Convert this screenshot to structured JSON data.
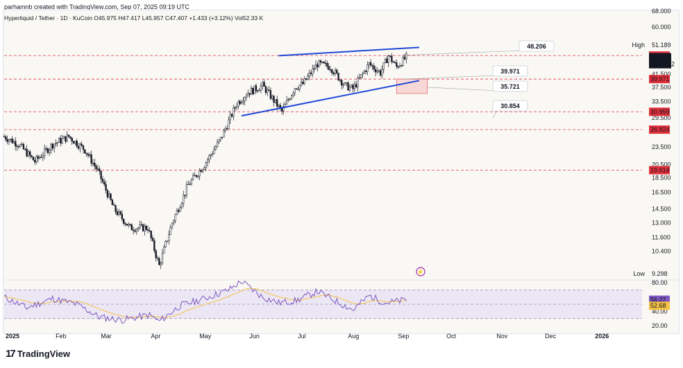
{
  "header": {
    "creator_line": "parhamnb created with TradingView.com, Sep 07, 2025 09:19 UTC",
    "symbol_line": "Hyperliquid / Tether · 1D · KuCoin  O45.975  H47.417  L45.957  C47.407  +1.433 (+3.12%)  Vol52.33 K"
  },
  "branding": {
    "name": "TradingView"
  },
  "chart_data": {
    "type": "candlestick",
    "title": "Hyperliquid / Tether · 1D · KuCoin",
    "y_scale": "log",
    "ylim": [
      8.5,
      68
    ],
    "y_ticks": [
      "68.000",
      "60.000",
      "41.500",
      "37.500",
      "33.500",
      "29.500",
      "23.500",
      "20.500",
      "18.500",
      "16.500",
      "14.500",
      "13.000",
      "11.600",
      "10.400"
    ],
    "x_ticks": [
      "2025",
      "Feb",
      "Mar",
      "Apr",
      "May",
      "Jun",
      "Jul",
      "Aug",
      "Sep",
      "Oct",
      "Nov",
      "Dec",
      "2026"
    ],
    "ohlc_last": {
      "open": 45.975,
      "high": 47.417,
      "low": 45.957,
      "close": 47.407,
      "change": 1.433,
      "change_pct": 3.12,
      "volume": "52.33 K"
    },
    "price_path_close": [
      [
        "2025-01-01",
        25.5
      ],
      [
        "2025-01-10",
        24.0
      ],
      [
        "2025-01-20",
        21.0
      ],
      [
        "2025-01-31",
        24.0
      ],
      [
        "2025-02-10",
        25.5
      ],
      [
        "2025-02-20",
        23.0
      ],
      [
        "2025-02-28",
        19.5
      ],
      [
        "2025-03-10",
        14.5
      ],
      [
        "2025-03-20",
        12.5
      ],
      [
        "2025-03-31",
        12.5
      ],
      [
        "2025-04-07",
        9.3
      ],
      [
        "2025-04-15",
        13.0
      ],
      [
        "2025-04-25",
        17.5
      ],
      [
        "2025-05-05",
        20.5
      ],
      [
        "2025-05-15",
        25.0
      ],
      [
        "2025-05-25",
        33.0
      ],
      [
        "2025-06-01",
        36.0
      ],
      [
        "2025-06-10",
        38.0
      ],
      [
        "2025-06-15",
        35.0
      ],
      [
        "2025-06-22",
        31.0
      ],
      [
        "2025-06-30",
        37.5
      ],
      [
        "2025-07-05",
        38.5
      ],
      [
        "2025-07-14",
        45.0
      ],
      [
        "2025-07-22",
        44.0
      ],
      [
        "2025-07-31",
        38.0
      ],
      [
        "2025-08-05",
        37.0
      ],
      [
        "2025-08-15",
        45.0
      ],
      [
        "2025-08-22",
        42.0
      ],
      [
        "2025-08-27",
        48.0
      ],
      [
        "2025-09-01",
        44.0
      ],
      [
        "2025-09-07",
        47.4
      ]
    ],
    "high": 51.189,
    "low": 9.298,
    "horizontal_levels": [
      48.043,
      39.971,
      30.959,
      26.924,
      19.614
    ],
    "level_tags": [
      "48.043",
      "39.971",
      "30.959",
      "26.924",
      "19.614"
    ],
    "price_tags": {
      "last": "47.407",
      "countdown": "14:40:42",
      "high_label": "High",
      "high_value": "51.189",
      "low_label": "Low",
      "low_value": "9.298"
    },
    "wedge_lines": [
      {
        "from": [
          "2025-05-28",
          30.0
        ],
        "to": [
          "2025-09-15",
          39.5
        ]
      },
      {
        "from": [
          "2025-06-20",
          48.0
        ],
        "to": [
          "2025-09-15",
          51.2
        ]
      }
    ],
    "annotations": [
      "48.206",
      "39.971",
      "35.721",
      "30.854"
    ],
    "target_zone": {
      "from": "2025-09-01",
      "to": "2025-09-20",
      "top": 39.971,
      "bottom": 35.721
    },
    "rsi": {
      "label": "RSI",
      "ylim": [
        20,
        80
      ],
      "y_ticks": [
        "80.00",
        "40.00",
        "20.00"
      ],
      "bands": [
        70,
        50,
        30
      ],
      "value": "56.27",
      "ma_value": "52.68",
      "path": [
        [
          "2025-01-01",
          60
        ],
        [
          "2025-01-15",
          45
        ],
        [
          "2025-01-31",
          58
        ],
        [
          "2025-02-15",
          50
        ],
        [
          "2025-03-01",
          32
        ],
        [
          "2025-03-15",
          28
        ],
        [
          "2025-04-01",
          35
        ],
        [
          "2025-04-07",
          26
        ],
        [
          "2025-04-20",
          48
        ],
        [
          "2025-05-05",
          58
        ],
        [
          "2025-05-20",
          70
        ],
        [
          "2025-05-28",
          82
        ],
        [
          "2025-06-10",
          60
        ],
        [
          "2025-06-20",
          52
        ],
        [
          "2025-07-01",
          55
        ],
        [
          "2025-07-14",
          68
        ],
        [
          "2025-07-25",
          55
        ],
        [
          "2025-08-05",
          42
        ],
        [
          "2025-08-15",
          62
        ],
        [
          "2025-08-25",
          52
        ],
        [
          "2025-09-07",
          56
        ]
      ]
    }
  }
}
